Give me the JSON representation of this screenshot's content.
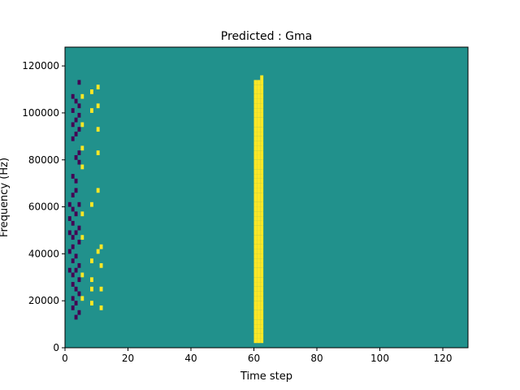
{
  "chart_data": {
    "type": "heatmap",
    "title": "Predicted : Gma",
    "xlabel": "Time step",
    "ylabel": "Frequency (Hz)",
    "xlim": [
      0,
      128
    ],
    "ylim": [
      0,
      128000
    ],
    "x_ticks": [
      0,
      20,
      40,
      60,
      80,
      100,
      120
    ],
    "y_ticks": [
      0,
      20000,
      40000,
      60000,
      80000,
      100000,
      120000
    ],
    "x_tick_labels": [
      "0",
      "20",
      "40",
      "60",
      "80",
      "100",
      "120"
    ],
    "y_tick_labels": [
      "0",
      "20000",
      "40000",
      "60000",
      "80000",
      "100000",
      "120000"
    ],
    "colors": {
      "background": "#21918c",
      "high": "#fde725",
      "low": "#440154"
    },
    "grid": false,
    "n_freq_bins": 64,
    "cells": [
      {
        "x": 1,
        "y_bins": [
          16,
          20,
          24,
          27,
          30
        ]
      },
      {
        "x": 2,
        "y_bins": [
          8,
          10,
          13,
          15,
          18,
          21,
          23,
          26,
          29,
          32,
          36,
          44,
          47,
          50,
          53
        ]
      },
      {
        "x": 3,
        "y_bins": [
          6,
          9,
          12,
          16,
          19,
          24,
          28,
          33,
          35,
          40,
          45,
          48,
          52
        ]
      },
      {
        "x": 4,
        "y_bins": [
          7,
          11,
          14,
          17,
          22,
          25,
          30,
          39,
          41,
          46,
          49,
          51,
          56
        ]
      },
      {
        "x": 5,
        "y_bins": [
          10,
          15,
          23,
          28,
          38,
          42,
          47,
          53
        ],
        "high": true
      },
      {
        "x": 8,
        "y_bins": [
          9,
          12,
          14,
          18,
          30,
          50,
          54
        ],
        "high": true
      },
      {
        "x": 10,
        "y_bins": [
          20,
          33,
          41,
          46,
          51,
          55
        ],
        "high": true
      },
      {
        "x": 11,
        "y_bins": [
          8,
          12,
          17,
          21
        ],
        "high": true
      }
    ],
    "yellow_columns": [
      {
        "x": 60,
        "from": 1,
        "to": 56
      },
      {
        "x": 61,
        "from": 1,
        "to": 56
      },
      {
        "x": 62,
        "from": 1,
        "to": 57
      }
    ]
  }
}
